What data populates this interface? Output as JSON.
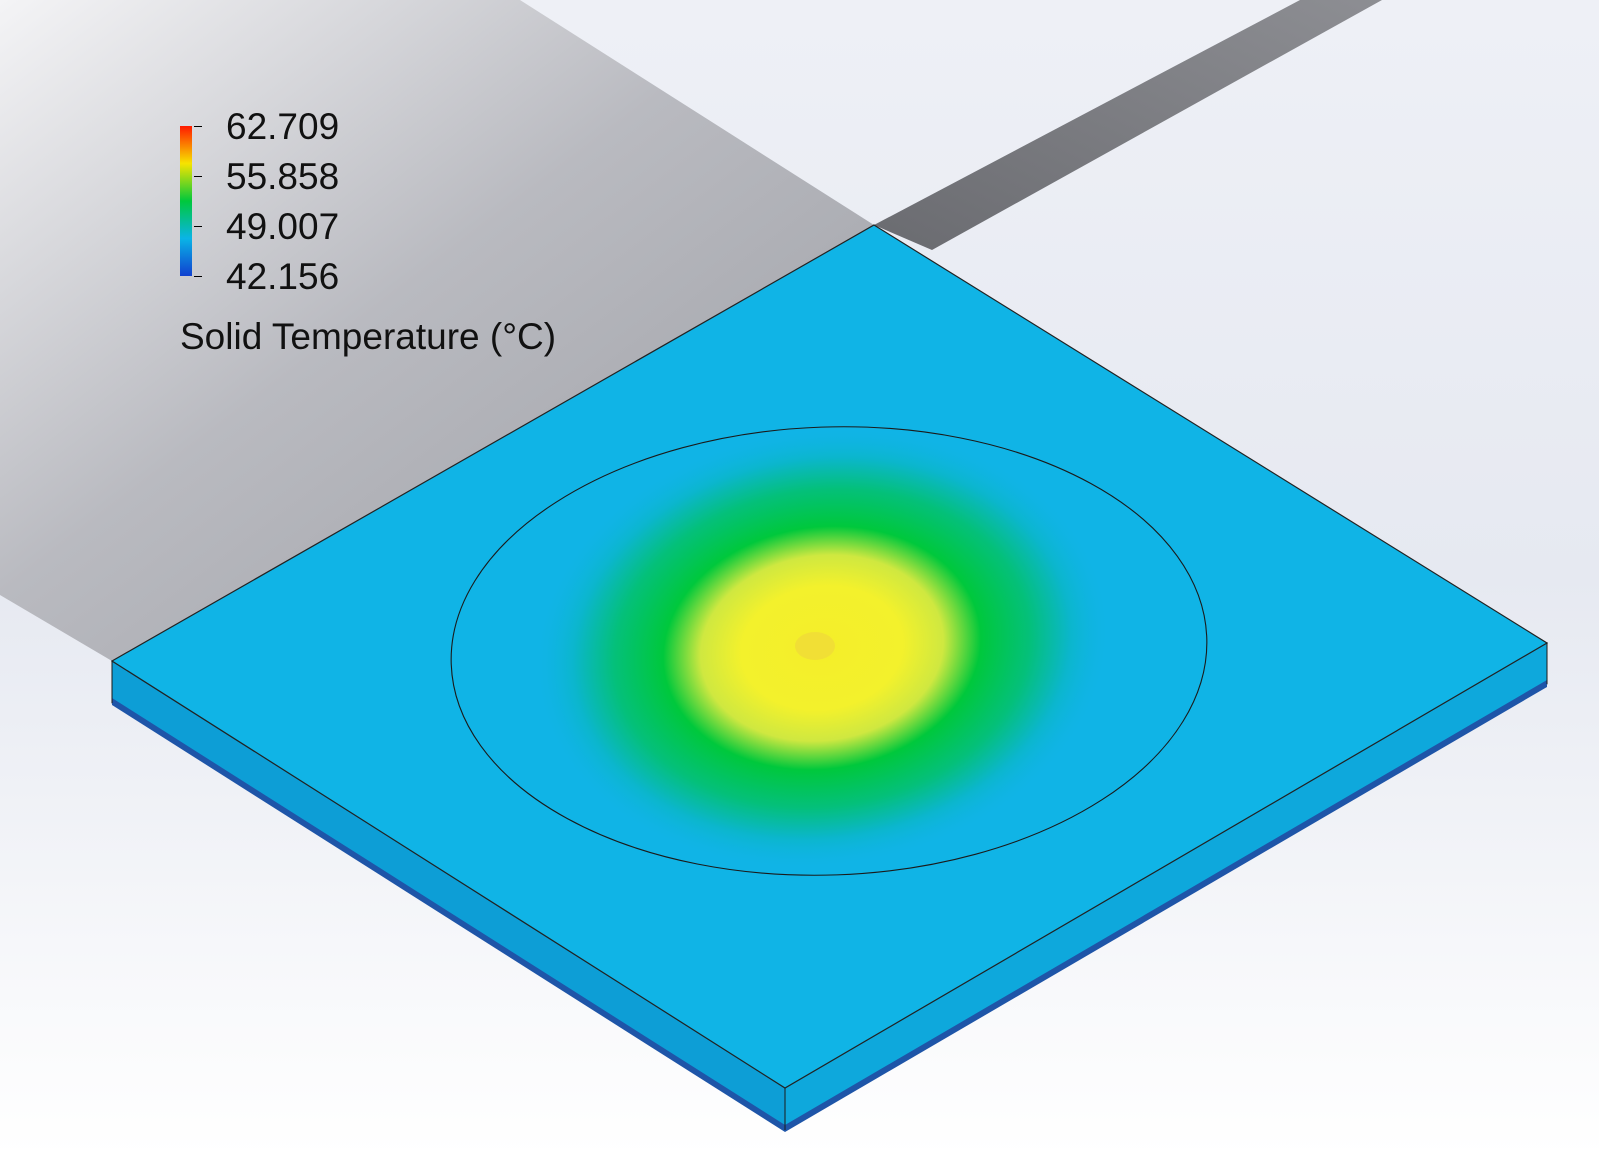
{
  "legend": {
    "title": "Solid Temperature (°C)",
    "ticks": [
      "62.709",
      "55.858",
      "49.007",
      "42.156"
    ],
    "max": 62.709,
    "min": 42.156,
    "colors": [
      "#ff1a00",
      "#f7e400",
      "#00c83c",
      "#0ab4e6",
      "#1040d0"
    ]
  },
  "plate": {
    "base_color": "#10b4e6",
    "hotspot_colors": [
      "#f3f030",
      "#00c83c"
    ]
  }
}
